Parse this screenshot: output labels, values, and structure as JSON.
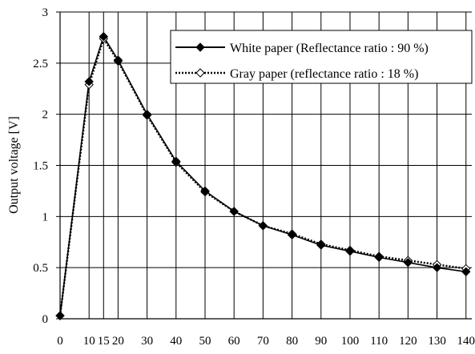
{
  "chart_data": {
    "type": "line",
    "title": "",
    "xlabel": "",
    "ylabel": "Output voltage [V]",
    "xlim": [
      0,
      142
    ],
    "ylim": [
      0,
      3
    ],
    "grid": true,
    "legend_position": "top-right",
    "x_ticks": [
      "0",
      "10",
      "15",
      "20",
      "30",
      "40",
      "50",
      "60",
      "70",
      "80",
      "90",
      "100",
      "110",
      "120",
      "130",
      "140"
    ],
    "y_ticks": [
      "0",
      "0.5",
      "1",
      "1.5",
      "2",
      "2.5",
      "3"
    ],
    "x": [
      0,
      10,
      15,
      20,
      30,
      40,
      50,
      60,
      70,
      80,
      90,
      100,
      110,
      120,
      130,
      140
    ],
    "series": [
      {
        "name": "White paper (Reflectance ratio : 90 %)",
        "style": "solid",
        "marker": "filled-diamond",
        "color": "#000000",
        "values": [
          0.03,
          2.32,
          2.76,
          2.53,
          2.0,
          1.54,
          1.25,
          1.05,
          0.91,
          0.82,
          0.72,
          0.66,
          0.6,
          0.55,
          0.5,
          0.46
        ]
      },
      {
        "name": "Gray paper (reflectance ratio : 18 %)",
        "style": "dotted",
        "marker": "open-diamond",
        "color": "#000000",
        "values": [
          0.03,
          2.29,
          2.74,
          2.52,
          1.99,
          1.53,
          1.24,
          1.05,
          0.91,
          0.83,
          0.73,
          0.67,
          0.61,
          0.57,
          0.53,
          0.49
        ]
      }
    ]
  }
}
